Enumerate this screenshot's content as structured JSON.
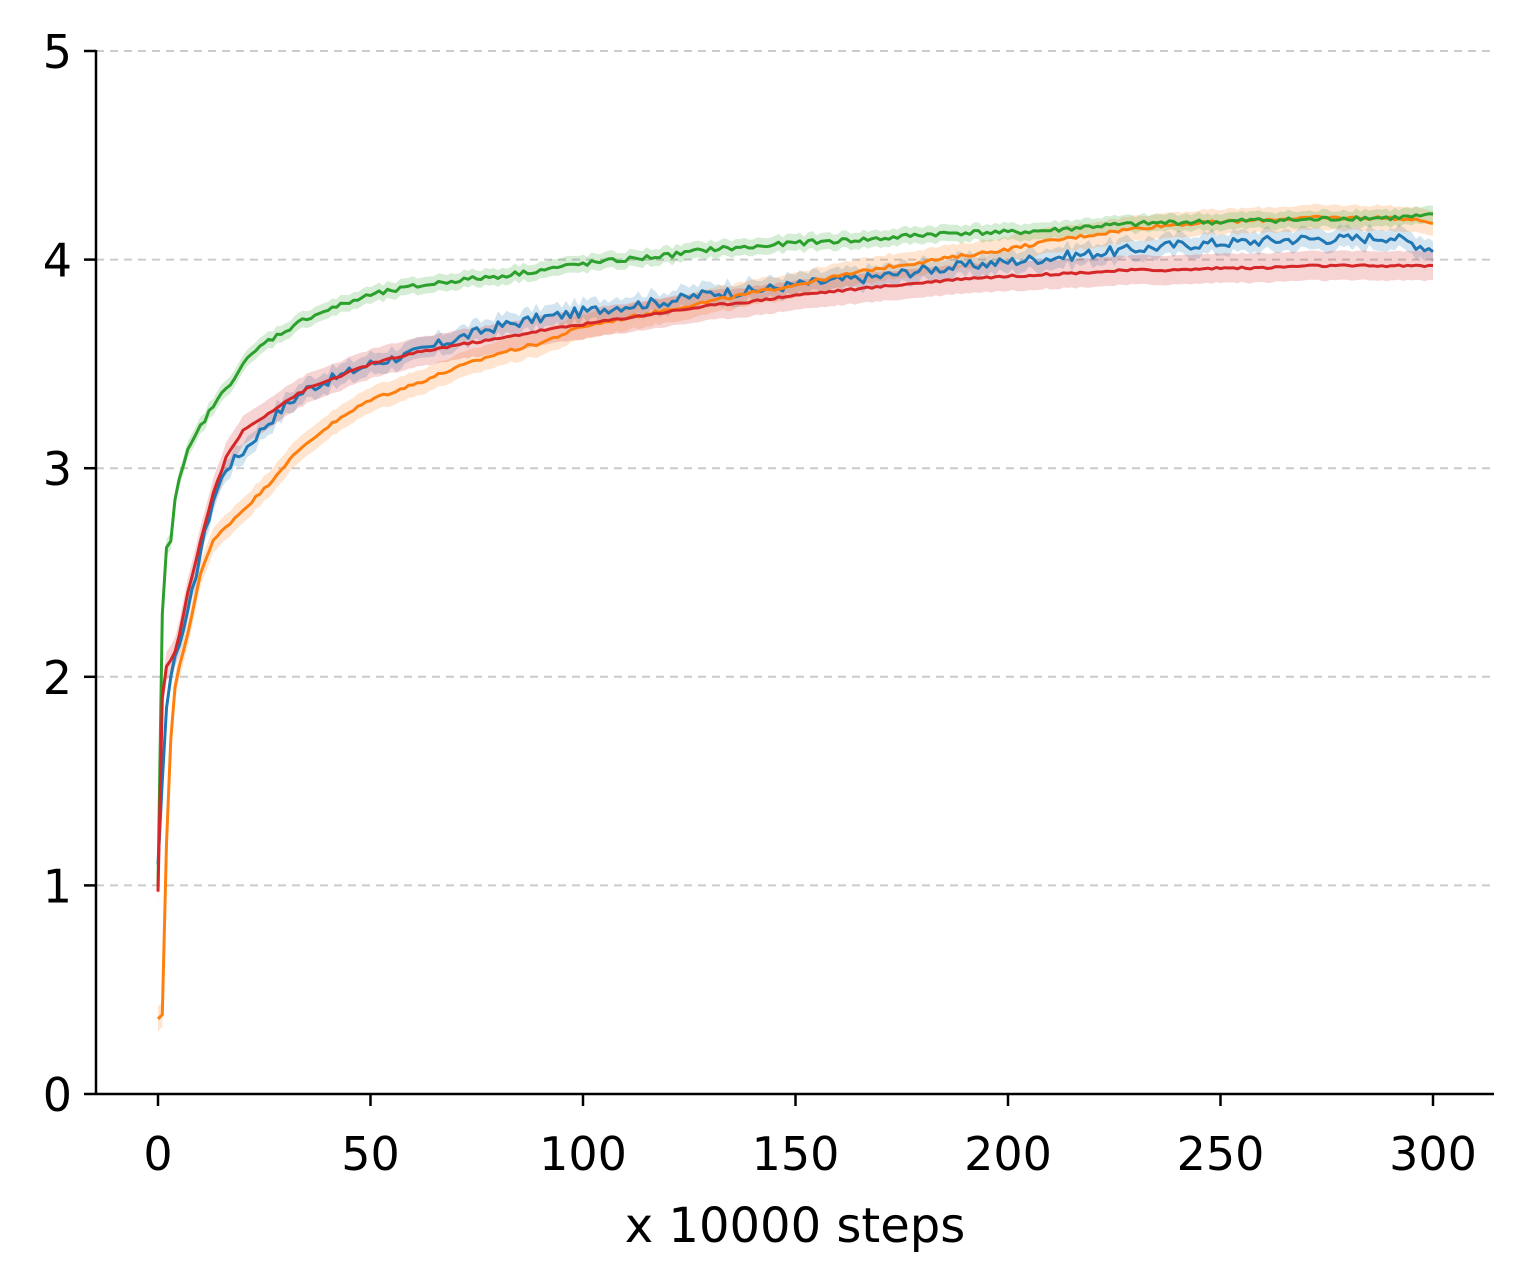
{
  "chart_data": {
    "type": "line",
    "title": "",
    "xlabel": "x 10000 steps",
    "ylabel": "",
    "xlim": [
      -15,
      315
    ],
    "ylim": [
      0,
      5
    ],
    "xticks": [
      0,
      50,
      100,
      150,
      200,
      250,
      300
    ],
    "yticks": [
      0,
      1,
      2,
      3,
      4,
      5
    ],
    "grid": "horizontal dashed",
    "legend": "none",
    "x": [
      0,
      1,
      2,
      3,
      4,
      5,
      7,
      10,
      13,
      16,
      20,
      25,
      30,
      35,
      40,
      50,
      60,
      70,
      80,
      90,
      100,
      110,
      120,
      130,
      140,
      150,
      160,
      170,
      180,
      190,
      200,
      210,
      220,
      230,
      240,
      250,
      260,
      270,
      280,
      290,
      300
    ],
    "series": [
      {
        "color": "#1f77b4",
        "values": [
          1.1,
          1.5,
          1.85,
          2.0,
          2.1,
          2.15,
          2.3,
          2.6,
          2.85,
          3.0,
          3.08,
          3.2,
          3.3,
          3.38,
          3.42,
          3.5,
          3.55,
          3.62,
          3.68,
          3.72,
          3.75,
          3.78,
          3.8,
          3.84,
          3.85,
          3.88,
          3.9,
          3.92,
          3.95,
          3.97,
          3.99,
          4.01,
          4.03,
          4.05,
          4.07,
          4.08,
          4.09,
          4.1,
          4.1,
          4.11,
          4.05
        ],
        "band": 0.05
      },
      {
        "color": "#ff7f0e",
        "values": [
          0.36,
          0.38,
          1.2,
          1.7,
          1.95,
          2.05,
          2.2,
          2.5,
          2.65,
          2.72,
          2.8,
          2.9,
          3.02,
          3.12,
          3.2,
          3.33,
          3.4,
          3.48,
          3.55,
          3.6,
          3.68,
          3.72,
          3.76,
          3.8,
          3.84,
          3.88,
          3.92,
          3.96,
          3.99,
          4.02,
          4.05,
          4.09,
          4.12,
          4.15,
          4.17,
          4.18,
          4.19,
          4.2,
          4.2,
          4.2,
          4.18
        ],
        "band": 0.06
      },
      {
        "color": "#2ca02c",
        "values": [
          1.0,
          2.3,
          2.62,
          2.65,
          2.85,
          2.95,
          3.08,
          3.2,
          3.3,
          3.38,
          3.5,
          3.6,
          3.66,
          3.72,
          3.76,
          3.83,
          3.87,
          3.9,
          3.92,
          3.95,
          3.98,
          4.0,
          4.02,
          4.05,
          4.06,
          4.08,
          4.09,
          4.1,
          4.12,
          4.13,
          4.13,
          4.14,
          4.16,
          4.17,
          4.18,
          4.18,
          4.19,
          4.19,
          4.2,
          4.2,
          4.21
        ],
        "band": 0.04
      },
      {
        "color": "#d62728",
        "values": [
          0.97,
          1.9,
          2.05,
          2.08,
          2.12,
          2.2,
          2.4,
          2.65,
          2.88,
          3.05,
          3.18,
          3.25,
          3.32,
          3.38,
          3.42,
          3.5,
          3.55,
          3.59,
          3.62,
          3.66,
          3.69,
          3.72,
          3.75,
          3.78,
          3.8,
          3.83,
          3.85,
          3.87,
          3.89,
          3.91,
          3.92,
          3.93,
          3.94,
          3.95,
          3.95,
          3.96,
          3.96,
          3.97,
          3.97,
          3.97,
          3.97
        ],
        "band": 0.07
      }
    ]
  }
}
